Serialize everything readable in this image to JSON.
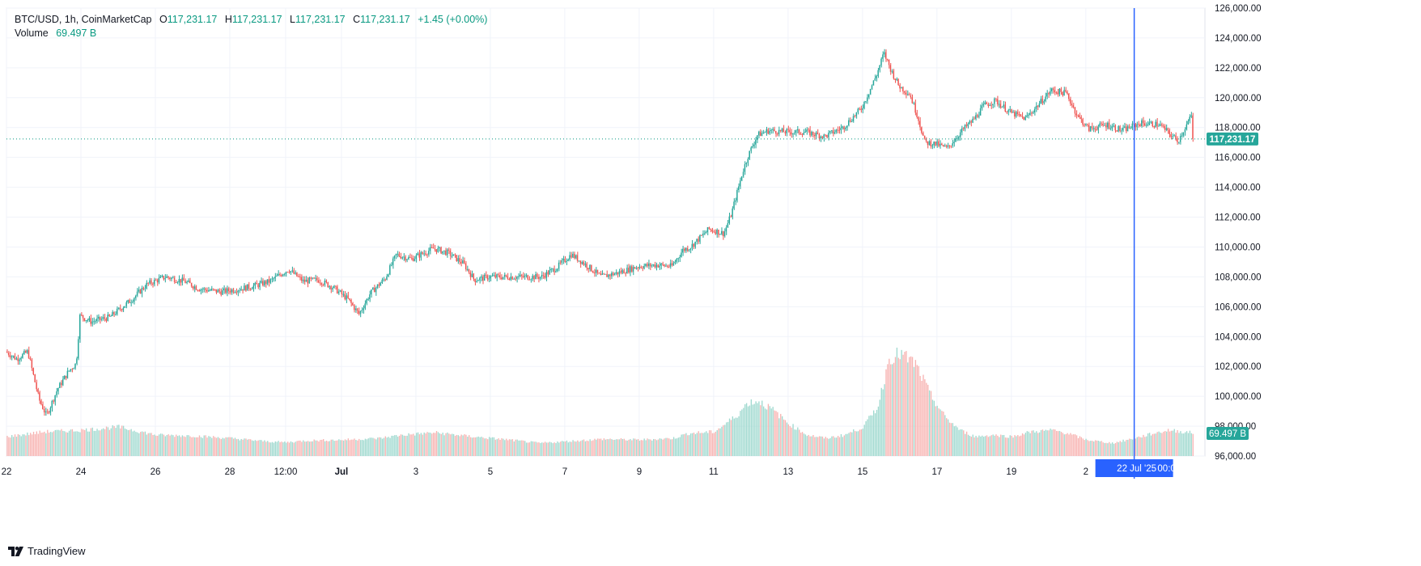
{
  "header": {
    "symbol": "BTC/USD, 1h, CoinMarketCap",
    "open_label": "O",
    "open": "117,231.17",
    "high_label": "H",
    "high": "117,231.17",
    "low_label": "L",
    "low": "117,231.17",
    "close_label": "C",
    "close": "117,231.17",
    "change": "+1.45 (+0.00%)",
    "volume_label": "Volume",
    "volume": "69.497 B"
  },
  "brand": {
    "name": "TradingView"
  },
  "colors": {
    "up": "#26a69a",
    "down": "#ef5350",
    "up_vol": "#9fd9cf",
    "down_vol": "#f7b3b1",
    "crosshair": "#2962ff",
    "price_line": "#089981",
    "grid": "#f0f3fa"
  },
  "chart_data": {
    "type": "candlestick",
    "interval": "1h",
    "y_axis": {
      "min": 96000,
      "max": 126000,
      "ticks": [
        "96,000.00",
        "98,000.00",
        "100,000.00",
        "102,000.00",
        "104,000.00",
        "106,000.00",
        "108,000.00",
        "110,000.00",
        "112,000.00",
        "114,000.00",
        "116,000.00",
        "118,000.00",
        "120,000.00",
        "122,000.00",
        "124,000.00",
        "126,000.00"
      ]
    },
    "x_axis": {
      "ticks": [
        "22",
        "24",
        "26",
        "28",
        "12:00",
        "Jul",
        "3",
        "5",
        "7",
        "9",
        "11",
        "13",
        "15",
        "17",
        "19",
        "2"
      ],
      "start_day": 22,
      "end_day": 54.2
    },
    "last_price": 117231.17,
    "last_price_label": "117,231.17",
    "volume_label": "69.497 B",
    "crosshair": {
      "date_label": "22 Jul '25",
      "time_label": "00:0",
      "day": 52.3
    },
    "keypoints": [
      [
        22.0,
        103000
      ],
      [
        22.3,
        102500
      ],
      [
        22.6,
        103000
      ],
      [
        22.9,
        99800
      ],
      [
        23.1,
        98700
      ],
      [
        23.4,
        100500
      ],
      [
        23.7,
        101700
      ],
      [
        23.9,
        102200
      ],
      [
        24.0,
        105400
      ],
      [
        24.3,
        105000
      ],
      [
        24.8,
        105300
      ],
      [
        25.4,
        106500
      ],
      [
        25.8,
        107500
      ],
      [
        26.3,
        108000
      ],
      [
        26.8,
        107700
      ],
      [
        27.2,
        107200
      ],
      [
        27.8,
        107000
      ],
      [
        28.3,
        107200
      ],
      [
        28.7,
        107400
      ],
      [
        29.1,
        107700
      ],
      [
        29.6,
        108500
      ],
      [
        30.0,
        107700
      ],
      [
        30.4,
        107800
      ],
      [
        30.8,
        107300
      ],
      [
        31.2,
        106500
      ],
      [
        31.5,
        105500
      ],
      [
        31.8,
        106900
      ],
      [
        32.2,
        107900
      ],
      [
        32.5,
        109500
      ],
      [
        32.9,
        109200
      ],
      [
        33.5,
        109900
      ],
      [
        33.9,
        109600
      ],
      [
        34.3,
        108900
      ],
      [
        34.6,
        107800
      ],
      [
        35.0,
        108000
      ],
      [
        35.5,
        108000
      ],
      [
        36.0,
        108000
      ],
      [
        36.4,
        108000
      ],
      [
        36.8,
        108600
      ],
      [
        37.2,
        109500
      ],
      [
        37.6,
        108800
      ],
      [
        38.0,
        108000
      ],
      [
        38.5,
        108300
      ],
      [
        39.0,
        108700
      ],
      [
        39.5,
        108800
      ],
      [
        39.9,
        108700
      ],
      [
        40.2,
        109800
      ],
      [
        40.4,
        110000
      ],
      [
        40.9,
        111200
      ],
      [
        41.3,
        110900
      ],
      [
        41.5,
        112200
      ],
      [
        41.8,
        115000
      ],
      [
        41.95,
        116100
      ],
      [
        42.2,
        117500
      ],
      [
        42.5,
        117800
      ],
      [
        43.0,
        117700
      ],
      [
        43.5,
        117700
      ],
      [
        44.0,
        117400
      ],
      [
        44.5,
        118000
      ],
      [
        45.0,
        119300
      ],
      [
        45.4,
        121500
      ],
      [
        45.6,
        123000
      ],
      [
        45.8,
        121800
      ],
      [
        46.0,
        120800
      ],
      [
        46.3,
        120200
      ],
      [
        46.5,
        118800
      ],
      [
        46.7,
        117000
      ],
      [
        47.0,
        116900
      ],
      [
        47.3,
        116600
      ],
      [
        47.7,
        117800
      ],
      [
        48.0,
        118500
      ],
      [
        48.3,
        119500
      ],
      [
        48.6,
        119800
      ],
      [
        49.0,
        119000
      ],
      [
        49.4,
        118600
      ],
      [
        49.7,
        119400
      ],
      [
        50.1,
        120500
      ],
      [
        50.5,
        120300
      ],
      [
        50.8,
        118800
      ],
      [
        51.1,
        117900
      ],
      [
        51.6,
        118200
      ],
      [
        52.0,
        117800
      ],
      [
        52.5,
        118300
      ],
      [
        53.0,
        118200
      ],
      [
        53.5,
        117100
      ],
      [
        53.8,
        118500
      ],
      [
        54.0,
        119300
      ],
      [
        54.3,
        118600
      ],
      [
        54.6,
        117500
      ],
      [
        54.9,
        117231
      ]
    ],
    "volume_keypoints": [
      [
        22.0,
        1.2
      ],
      [
        23.0,
        1.5
      ],
      [
        24.0,
        1.6
      ],
      [
        25.0,
        1.8
      ],
      [
        26.0,
        1.3
      ],
      [
        27.0,
        1.25
      ],
      [
        28.0,
        1.1
      ],
      [
        29.0,
        0.9
      ],
      [
        29.5,
        0.85
      ],
      [
        30.0,
        0.95
      ],
      [
        31.0,
        1.0
      ],
      [
        32.0,
        1.1
      ],
      [
        32.6,
        1.3
      ],
      [
        33.5,
        1.45
      ],
      [
        34.5,
        1.2
      ],
      [
        35.5,
        1.0
      ],
      [
        36.3,
        0.8
      ],
      [
        37.0,
        0.9
      ],
      [
        38.0,
        1.05
      ],
      [
        39.0,
        1.0
      ],
      [
        39.9,
        1.1
      ],
      [
        40.3,
        1.4
      ],
      [
        41.0,
        1.5
      ],
      [
        41.6,
        2.5
      ],
      [
        41.9,
        3.3
      ],
      [
        42.2,
        3.4
      ],
      [
        42.6,
        2.8
      ],
      [
        43.0,
        2.0
      ],
      [
        43.5,
        1.3
      ],
      [
        44.0,
        1.1
      ],
      [
        44.5,
        1.3
      ],
      [
        45.0,
        1.8
      ],
      [
        45.4,
        3.1
      ],
      [
        45.7,
        6.1
      ],
      [
        46.0,
        6.3
      ],
      [
        46.4,
        5.7
      ],
      [
        46.8,
        3.8
      ],
      [
        47.2,
        2.4
      ],
      [
        47.6,
        1.6
      ],
      [
        48.0,
        1.2
      ],
      [
        48.5,
        1.3
      ],
      [
        49.0,
        1.2
      ],
      [
        49.5,
        1.5
      ],
      [
        50.1,
        1.6
      ],
      [
        50.5,
        1.4
      ],
      [
        51.0,
        1.0
      ],
      [
        51.7,
        0.8
      ],
      [
        52.3,
        1.1
      ],
      [
        52.8,
        1.4
      ],
      [
        53.2,
        1.6
      ],
      [
        53.6,
        1.5
      ],
      [
        54.0,
        1.4
      ],
      [
        54.2,
        1.4
      ]
    ]
  }
}
